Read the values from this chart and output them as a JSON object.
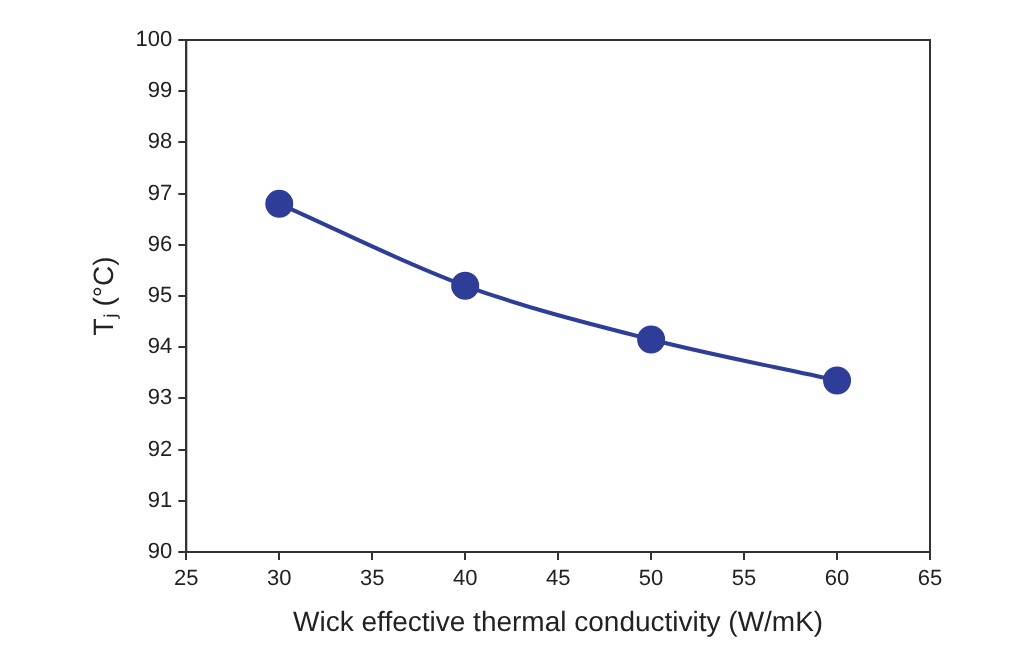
{
  "chart_data": {
    "type": "line",
    "xlabel": "Wick effective thermal conductivity (W/mK)",
    "ylabel": "Tⱼ (°C)",
    "x": [
      30,
      40,
      50,
      60
    ],
    "series": [
      {
        "color": "#2e3d98",
        "values": [
          96.8,
          95.2,
          94.15,
          93.35
        ]
      }
    ],
    "xlim": [
      25,
      65
    ],
    "xticks": [
      25,
      30,
      35,
      40,
      45,
      50,
      55,
      60,
      65
    ],
    "ylim": [
      90,
      100
    ],
    "yticks": [
      90,
      91,
      92,
      93,
      94,
      95,
      96,
      97,
      98,
      99,
      100
    ],
    "grid": false,
    "legend": false,
    "marker": "circle",
    "line_style": "solid"
  }
}
